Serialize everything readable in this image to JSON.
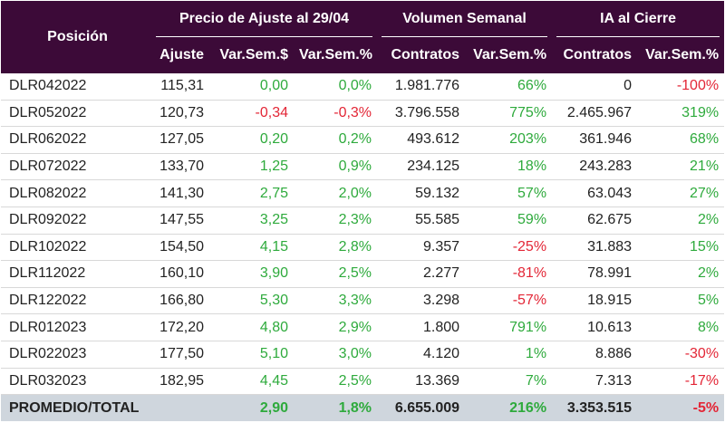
{
  "header": {
    "position_label": "Posición",
    "groups": [
      {
        "label": "Precio de Ajuste al 29/04",
        "span": 3
      },
      {
        "label": "Volumen Semanal",
        "span": 2
      },
      {
        "label": "IA al Cierre",
        "span": 2
      }
    ],
    "subheaders": [
      "Ajuste",
      "Var.Sem.$",
      "Var.Sem.%",
      "Contratos",
      "Var.Sem.%",
      "Contratos",
      "Var.Sem.%"
    ]
  },
  "colors": {
    "header_bg": "#3c0a38",
    "positive": "#2eaa3c",
    "negative": "#e32636",
    "total_bg": "#cfd6dd"
  },
  "rows": [
    {
      "pos": "DLR042022",
      "ajuste": "115,31",
      "var_usd": "0,00",
      "var_pct": "0,0%",
      "vol": "1.981.776",
      "vol_var": "66%",
      "ia": "0",
      "ia_var": "-100%"
    },
    {
      "pos": "DLR052022",
      "ajuste": "120,73",
      "var_usd": "-0,34",
      "var_pct": "-0,3%",
      "vol": "3.796.558",
      "vol_var": "775%",
      "ia": "2.465.967",
      "ia_var": "319%"
    },
    {
      "pos": "DLR062022",
      "ajuste": "127,05",
      "var_usd": "0,20",
      "var_pct": "0,2%",
      "vol": "493.612",
      "vol_var": "203%",
      "ia": "361.946",
      "ia_var": "68%"
    },
    {
      "pos": "DLR072022",
      "ajuste": "133,70",
      "var_usd": "1,25",
      "var_pct": "0,9%",
      "vol": "234.125",
      "vol_var": "18%",
      "ia": "243.283",
      "ia_var": "21%"
    },
    {
      "pos": "DLR082022",
      "ajuste": "141,30",
      "var_usd": "2,75",
      "var_pct": "2,0%",
      "vol": "59.132",
      "vol_var": "57%",
      "ia": "63.043",
      "ia_var": "27%"
    },
    {
      "pos": "DLR092022",
      "ajuste": "147,55",
      "var_usd": "3,25",
      "var_pct": "2,3%",
      "vol": "55.585",
      "vol_var": "59%",
      "ia": "62.675",
      "ia_var": "2%"
    },
    {
      "pos": "DLR102022",
      "ajuste": "154,50",
      "var_usd": "4,15",
      "var_pct": "2,8%",
      "vol": "9.357",
      "vol_var": "-25%",
      "ia": "31.883",
      "ia_var": "15%"
    },
    {
      "pos": "DLR112022",
      "ajuste": "160,10",
      "var_usd": "3,90",
      "var_pct": "2,5%",
      "vol": "2.277",
      "vol_var": "-81%",
      "ia": "78.991",
      "ia_var": "2%"
    },
    {
      "pos": "DLR122022",
      "ajuste": "166,80",
      "var_usd": "5,30",
      "var_pct": "3,3%",
      "vol": "3.298",
      "vol_var": "-57%",
      "ia": "18.915",
      "ia_var": "5%"
    },
    {
      "pos": "DLR012023",
      "ajuste": "172,20",
      "var_usd": "4,80",
      "var_pct": "2,9%",
      "vol": "1.800",
      "vol_var": "791%",
      "ia": "10.613",
      "ia_var": "8%"
    },
    {
      "pos": "DLR022023",
      "ajuste": "177,50",
      "var_usd": "5,10",
      "var_pct": "3,0%",
      "vol": "4.120",
      "vol_var": "1%",
      "ia": "8.886",
      "ia_var": "-30%"
    },
    {
      "pos": "DLR032023",
      "ajuste": "182,95",
      "var_usd": "4,45",
      "var_pct": "2,5%",
      "vol": "13.369",
      "vol_var": "7%",
      "ia": "7.313",
      "ia_var": "-17%"
    }
  ],
  "total": {
    "pos": "PROMEDIO/TOTAL",
    "ajuste": "",
    "var_usd": "2,90",
    "var_pct": "1,8%",
    "vol": "6.655.009",
    "vol_var": "216%",
    "ia": "3.353.515",
    "ia_var": "-5%"
  }
}
